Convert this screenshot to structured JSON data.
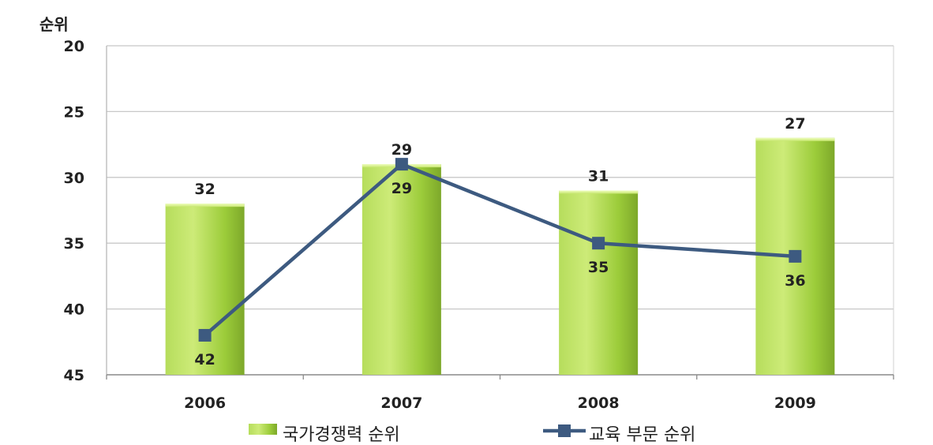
{
  "chart_data": {
    "type": "bar",
    "categories": [
      "2006",
      "2007",
      "2008",
      "2009"
    ],
    "ylabel": "순위",
    "ylim": [
      20,
      45
    ],
    "y_inverted": true,
    "yticks": [
      20,
      25,
      30,
      35,
      40,
      45
    ],
    "grid": true,
    "legend_position": "bottom",
    "series": [
      {
        "name": "국가경쟁력 순위",
        "kind": "bar",
        "values": [
          32,
          29,
          31,
          27
        ],
        "color": "#9ccc3a"
      },
      {
        "name": "교육 부문 순위",
        "kind": "line",
        "values": [
          42,
          29,
          35,
          36
        ],
        "color": "#3d5a80"
      }
    ]
  }
}
